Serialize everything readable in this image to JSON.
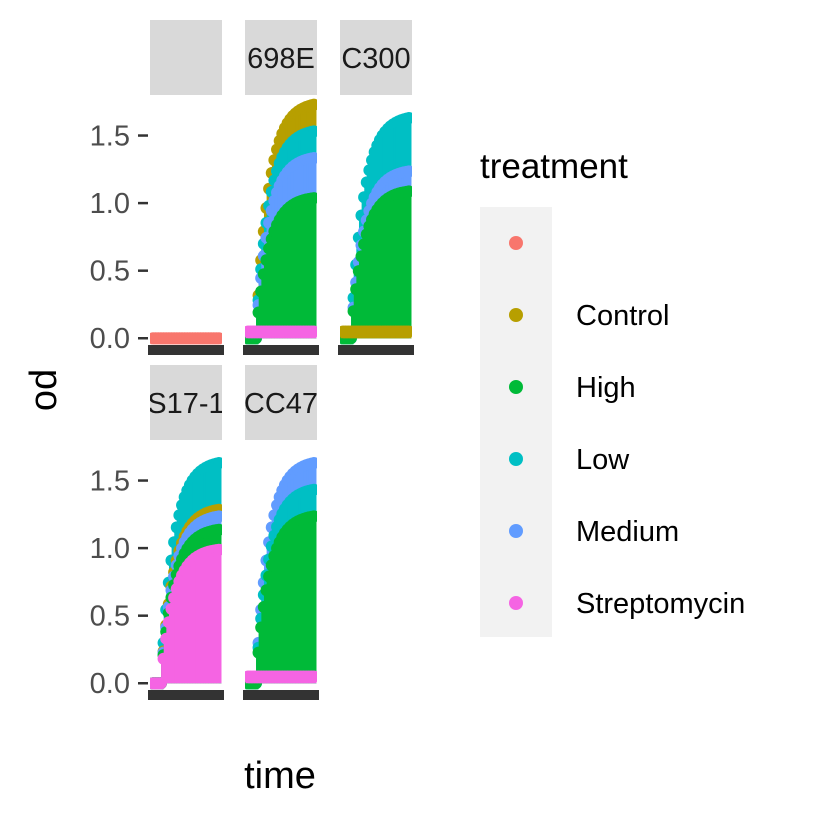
{
  "chart_data": {
    "type": "scatter",
    "xlabel": "time",
    "ylabel": "od",
    "ylim": [
      -0.05,
      1.8
    ],
    "yticks": [
      0.0,
      0.5,
      1.0,
      1.5
    ],
    "ytick_labels": [
      "0.0",
      "0.5",
      "1.0",
      "1.5"
    ],
    "legend": {
      "title": "treatment",
      "placement": "right",
      "entries": [
        {
          "label": "",
          "color": "#F8766D"
        },
        {
          "label": "Control",
          "color": "#B79F00"
        },
        {
          "label": "High",
          "color": "#00BA38"
        },
        {
          "label": "Low",
          "color": "#00BFC4"
        },
        {
          "label": "Medium",
          "color": "#619CFF"
        },
        {
          "label": "Streptomycin",
          "color": "#F564E3"
        }
      ]
    },
    "facets": [
      {
        "strip": "",
        "row": 0,
        "col": 0,
        "series": [
          {
            "treatment": "",
            "ymax": 0.0
          }
        ]
      },
      {
        "strip": "698E",
        "row": 0,
        "col": 1,
        "series": [
          {
            "treatment": "Control",
            "ymax": 1.75
          },
          {
            "treatment": "Low",
            "ymax": 1.55
          },
          {
            "treatment": "Medium",
            "ymax": 1.35
          },
          {
            "treatment": "High",
            "ymax": 1.05
          },
          {
            "treatment": "Streptomycin",
            "ymax": 0.05
          }
        ]
      },
      {
        "strip": "C300",
        "row": 0,
        "col": 2,
        "series": [
          {
            "treatment": "Low",
            "ymax": 1.65
          },
          {
            "treatment": "Medium",
            "ymax": 1.25
          },
          {
            "treatment": "High",
            "ymax": 1.1
          },
          {
            "treatment": "Control",
            "ymax": 0.05
          }
        ]
      },
      {
        "strip": "S17-1",
        "row": 1,
        "col": 0,
        "series": [
          {
            "treatment": "Low",
            "ymax": 1.65
          },
          {
            "treatment": "Control",
            "ymax": 1.3
          },
          {
            "treatment": "Medium",
            "ymax": 1.25
          },
          {
            "treatment": "High",
            "ymax": 1.15
          },
          {
            "treatment": "Streptomycin",
            "ymax": 1.0
          }
        ]
      },
      {
        "strip": "CC47",
        "row": 1,
        "col": 1,
        "series": [
          {
            "treatment": "Medium",
            "ymax": 1.65
          },
          {
            "treatment": "Low",
            "ymax": 1.45
          },
          {
            "treatment": "High",
            "ymax": 1.25
          },
          {
            "treatment": "Streptomycin",
            "ymax": 0.05
          }
        ]
      }
    ]
  }
}
